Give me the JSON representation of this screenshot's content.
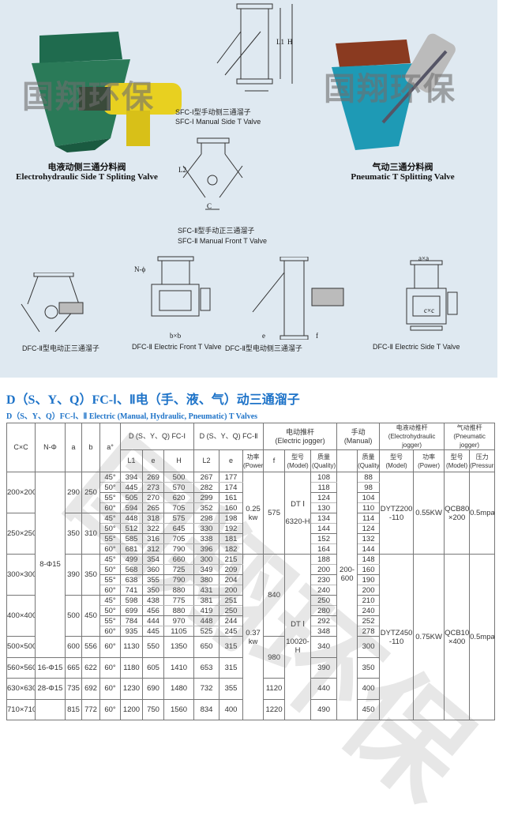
{
  "watermark": "国翔环保",
  "images": {
    "electrohydraulic": {
      "cn": "电液动侧三通分料阀",
      "en": "Electrohydraulic Side T Spliting Valve"
    },
    "pneumatic": {
      "cn": "气动三通分料阀",
      "en": "Pneumatic T Splitting Valve"
    },
    "sfc1": {
      "cn": "SFC-Ⅰ型手动侧三通溜子",
      "en": "SFC-Ⅰ Manual Side T Valve"
    },
    "sfc2": {
      "cn": "SFC-Ⅱ型手动正三通溜子",
      "en": "SFC-Ⅱ Manual Front T Valve"
    },
    "dfc_front_cn": "DFC-Ⅱ型电动正三通溜子",
    "dfc_front_en": "DFC-Ⅱ Electric Front T Valve",
    "dfc_side_cn": "DFC-Ⅱ型电动侧三通溜子",
    "dfc_side_en": "DFC-Ⅱ Electric Side T Valve"
  },
  "diagram_labels": {
    "L1": "L1",
    "H": "H",
    "L2": "L2",
    "C": "C",
    "a": "a",
    "N": "N-ϕ",
    "e": "e",
    "f": "f",
    "bxb": "b×b",
    "cxc": "c×c",
    "axa": "a×a"
  },
  "title": "D（S、Y、Q）FC-Ⅰ、Ⅱ电（手、液、气）动三通溜子",
  "subtitle": "D（S、Y、Q）FC-Ⅰ、Ⅱ Electric (Manual, Hydraulic, Pneumatic) T Valves",
  "table": {
    "headers": {
      "cxc": "C×C",
      "n": "N-Φ",
      "a": "a",
      "b": "b",
      "angle": "a°",
      "fc1": "D (S、Y、Q) FC-Ⅰ",
      "fc2": "D (S、Y、Q) FC-Ⅱ",
      "elec": "电动推杆\n(Electric jogger)",
      "manual": "手动\n(Manual)",
      "ehyd": "电液动推杆\n(Electrohydraulic jogger)",
      "pneu": "气动推杆\n(Pneumatic jogger)",
      "L1": "L1",
      "e": "e",
      "H": "H",
      "L2": "L2",
      "e2": "e",
      "power": "功率\n(Power)",
      "f": "f",
      "model": "型号\n(Model)",
      "quality": "质量\n(Quality)",
      "mquality": "质量\n(Quality)",
      "emodel": "型号\n(Model)",
      "epower": "功率\n(Power)",
      "pmodel": "型号\n(Model)",
      "pressure": "压力\n(Pressurs)"
    },
    "sizes": [
      {
        "cxc": "200×200",
        "a": "290",
        "b": "250",
        "rows": [
          [
            "45°",
            "394",
            "269",
            "500",
            "267",
            "177",
            "108",
            "88"
          ],
          [
            "50°",
            "445",
            "273",
            "570",
            "282",
            "174",
            "118",
            "98"
          ],
          [
            "55°",
            "505",
            "270",
            "620",
            "299",
            "161",
            "124",
            "104"
          ],
          [
            "60°",
            "594",
            "265",
            "705",
            "352",
            "160",
            "130",
            "110"
          ]
        ]
      },
      {
        "cxc": "250×250",
        "a": "350",
        "b": "310",
        "rows": [
          [
            "45°",
            "448",
            "318",
            "575",
            "298",
            "198",
            "134",
            "114"
          ],
          [
            "50°",
            "512",
            "322",
            "645",
            "330",
            "192",
            "144",
            "124"
          ],
          [
            "55°",
            "585",
            "316",
            "705",
            "338",
            "181",
            "152",
            "132"
          ],
          [
            "60°",
            "681",
            "312",
            "790",
            "396",
            "182",
            "164",
            "144"
          ]
        ]
      },
      {
        "cxc": "300×300",
        "a": "390",
        "b": "350",
        "rows": [
          [
            "45°",
            "499",
            "354",
            "660",
            "300",
            "215",
            "188",
            "148"
          ],
          [
            "50°",
            "568",
            "360",
            "725",
            "349",
            "209",
            "200",
            "160"
          ],
          [
            "55°",
            "638",
            "355",
            "790",
            "380",
            "204",
            "230",
            "190"
          ],
          [
            "60°",
            "741",
            "350",
            "880",
            "431",
            "200",
            "240",
            "200"
          ]
        ]
      },
      {
        "cxc": "400×400",
        "a": "500",
        "b": "450",
        "rows": [
          [
            "45°",
            "598",
            "438",
            "775",
            "381",
            "251",
            "250",
            "210"
          ],
          [
            "50°",
            "699",
            "456",
            "880",
            "419",
            "250",
            "280",
            "240"
          ],
          [
            "55°",
            "784",
            "444",
            "970",
            "448",
            "244",
            "292",
            "252"
          ],
          [
            "60°",
            "935",
            "445",
            "1105",
            "525",
            "245",
            "348",
            "278"
          ]
        ]
      },
      {
        "cxc": "500×500",
        "a": "600",
        "b": "556",
        "rows": [
          [
            "60°",
            "1130",
            "550",
            "1350",
            "650",
            "315",
            "340",
            "300"
          ]
        ]
      },
      {
        "cxc": "560×560",
        "a": "665",
        "b": "622",
        "rows": [
          [
            "60°",
            "1180",
            "605",
            "1410",
            "653",
            "315",
            "390",
            "350"
          ]
        ]
      },
      {
        "cxc": "630×630",
        "a": "735",
        "b": "692",
        "rows": [
          [
            "60°",
            "1230",
            "690",
            "1480",
            "732",
            "355",
            "440",
            "400"
          ]
        ]
      },
      {
        "cxc": "710×710",
        "a": "815",
        "b": "772",
        "rows": [
          [
            "60°",
            "1200",
            "750",
            "1560",
            "834",
            "400",
            "490",
            "450"
          ]
        ]
      }
    ],
    "n_phi": [
      {
        "text": "8-Φ15",
        "span": 17
      },
      {
        "text": "16-Φ15",
        "span": 1
      },
      {
        "text": "28-Φ15",
        "span": 1
      },
      {
        "text": "",
        "span": 1
      }
    ],
    "power": [
      {
        "text": "0.25\nkw",
        "span": 8
      },
      {
        "text": "0.37\nkw",
        "span": 12
      }
    ],
    "f": [
      {
        "text": "575",
        "span": 8
      },
      {
        "text": "840",
        "span": 8
      },
      {
        "text": "980",
        "span": 2
      },
      {
        "text": "1120",
        "span": 1
      },
      {
        "text": "1220",
        "span": 1
      }
    ],
    "elec_model": [
      {
        "text": "DT Ⅰ\n\n6320-H",
        "span": 8
      },
      {
        "text": "DT Ⅰ\n\n10020-H",
        "span": 12
      }
    ],
    "manual_range": "200-\n600",
    "ehyd_model": [
      {
        "text": "DYTZ200\n-110",
        "span": 8
      },
      {
        "text": "DYTZ450\n-110",
        "span": 12
      }
    ],
    "ehyd_power": [
      {
        "text": "0.55KW",
        "span": 8
      },
      {
        "text": "0.75KW",
        "span": 12
      }
    ],
    "pneu_model": [
      {
        "text": "QCB80\n×200",
        "span": 8
      },
      {
        "text": "QCB100\n×400",
        "span": 12
      }
    ],
    "pressure": [
      {
        "text": "0.5mpa",
        "span": 8
      },
      {
        "text": "0.5mpa",
        "span": 12
      }
    ]
  }
}
